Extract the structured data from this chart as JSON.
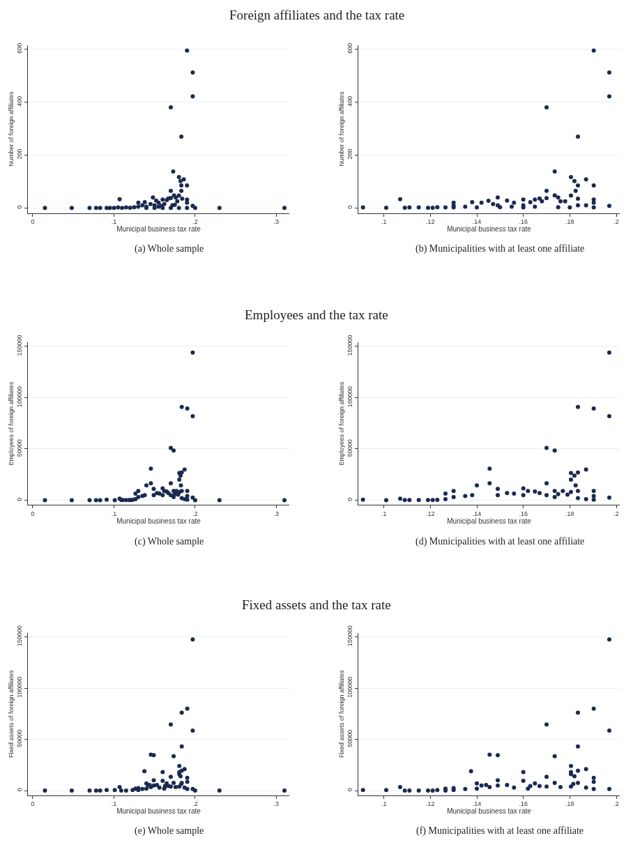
{
  "chart_data": [
    {
      "type": "scatter",
      "title": "Foreign affiliates and the tax rate",
      "xlabel": "Municipal business tax rate",
      "ylabel": "Number of foreign affiliates",
      "annotations": [
        "(a) Whole sample"
      ],
      "color": "#1a2a50",
      "marker": "circle",
      "grid": "y",
      "xlim": [
        -0.006,
        0.316
      ],
      "ylim": [
        -19,
        616
      ],
      "xticks": [
        0,
        {
          "value": 0.1,
          "label": ".1"
        },
        {
          "value": 0.2,
          "label": ".2"
        },
        {
          "value": 0.3,
          "label": ".3"
        }
      ],
      "yticks": [
        0,
        200,
        400,
        600
      ],
      "x": [
        0.015,
        0.048,
        0.07,
        0.078,
        0.083,
        0.091,
        0.095,
        0.1,
        0.105,
        0.107,
        0.11,
        0.115,
        0.12,
        0.125,
        0.13,
        0.13,
        0.135,
        0.138,
        0.14,
        0.14,
        0.145,
        0.148,
        0.15,
        0.15,
        0.152,
        0.155,
        0.155,
        0.158,
        0.16,
        0.16,
        0.162,
        0.165,
        0.167,
        0.17,
        0.17,
        0.17,
        0.17,
        0.172,
        0.173,
        0.174,
        0.175,
        0.176,
        0.178,
        0.18,
        0.18,
        0.18,
        0.182,
        0.183,
        0.183,
        0.183,
        0.184,
        0.186,
        0.19,
        0.19,
        0.19,
        0.19,
        0.19,
        0.197,
        0.197,
        0.197,
        0.2,
        0.23,
        0.31
      ],
      "values": [
        0,
        0,
        0,
        0,
        0,
        0,
        0,
        0,
        2,
        33,
        0,
        2,
        1,
        3,
        20,
        5,
        10,
        22,
        5,
        0,
        15,
        40,
        10,
        0,
        28,
        20,
        5,
        8,
        32,
        0,
        15,
        30,
        36,
        65,
        38,
        380,
        0,
        10,
        138,
        48,
        12,
        40,
        25,
        117,
        47,
        0,
        102,
        85,
        65,
        270,
        35,
        108,
        85,
        595,
        32,
        20,
        0,
        512,
        422,
        8,
        0,
        0,
        0
      ]
    },
    {
      "type": "scatter",
      "xlabel": "Municipal business tax rate",
      "ylabel": "Number of foreign affiliates",
      "annotations": [
        "(b) Municipalities with at least one affiliate"
      ],
      "color": "#1a2a50",
      "marker": "circle",
      "grid": "y",
      "xlim": [
        0.089,
        0.2015
      ],
      "ylim": [
        -19,
        616
      ],
      "xticks": [
        {
          "value": 0.1,
          "label": ".1"
        },
        {
          "value": 0.12,
          "label": ".12"
        },
        {
          "value": 0.14,
          "label": ".14"
        },
        {
          "value": 0.16,
          "label": ".16"
        },
        {
          "value": 0.18,
          "label": ".18"
        },
        {
          "value": 0.2,
          "label": ".2"
        }
      ],
      "yticks": [
        0,
        200,
        400,
        600
      ],
      "x": [
        0.091,
        0.101,
        0.107,
        0.109,
        0.111,
        0.115,
        0.119,
        0.121,
        0.123,
        0.1265,
        0.13,
        0.13,
        0.13,
        0.135,
        0.138,
        0.14,
        0.142,
        0.145,
        0.147,
        0.149,
        0.149,
        0.15,
        0.153,
        0.155,
        0.156,
        0.16,
        0.16,
        0.16,
        0.163,
        0.165,
        0.165,
        0.167,
        0.168,
        0.17,
        0.17,
        0.17,
        0.1735,
        0.1735,
        0.175,
        0.175,
        0.176,
        0.178,
        0.18,
        0.1805,
        0.1805,
        0.182,
        0.1825,
        0.1835,
        0.1835,
        0.1835,
        0.1835,
        0.187,
        0.187,
        0.1903,
        0.1903,
        0.1903,
        0.1903,
        0.1903,
        0.197,
        0.197,
        0.197
      ],
      "values": [
        2,
        1,
        33,
        1,
        2,
        2,
        1,
        1,
        3,
        2,
        20,
        8,
        2,
        5,
        22,
        2,
        20,
        27,
        15,
        40,
        10,
        3,
        28,
        5,
        20,
        32,
        10,
        2,
        22,
        32,
        5,
        36,
        25,
        65,
        37,
        380,
        138,
        48,
        40,
        3,
        25,
        25,
        2,
        117,
        47,
        102,
        65,
        85,
        270,
        35,
        10,
        108,
        10,
        85,
        595,
        32,
        20,
        2,
        512,
        422,
        8
      ]
    },
    {
      "type": "scatter",
      "title": "Employees and the tax rate",
      "xlabel": "Municipal business tax rate",
      "ylabel": "Employees of foreign affiliates",
      "annotations": [
        "(c) Whole sample"
      ],
      "color": "#1a2a50",
      "marker": "circle",
      "grid": "y",
      "xlim": [
        -0.006,
        0.316
      ],
      "ylim": [
        -4500,
        154000
      ],
      "xticks": [
        0,
        {
          "value": 0.1,
          "label": ".1"
        },
        {
          "value": 0.2,
          "label": ".2"
        },
        {
          "value": 0.3,
          "label": ".3"
        }
      ],
      "yticks": [
        0,
        50000,
        100000,
        150000
      ],
      "x": [
        0.015,
        0.048,
        0.07,
        0.078,
        0.083,
        0.091,
        0.101,
        0.107,
        0.109,
        0.111,
        0.115,
        0.119,
        0.121,
        0.123,
        0.1265,
        0.1265,
        0.13,
        0.13,
        0.135,
        0.138,
        0.14,
        0.1455,
        0.1455,
        0.149,
        0.149,
        0.153,
        0.156,
        0.16,
        0.16,
        0.162,
        0.165,
        0.167,
        0.17,
        0.17,
        0.17,
        0.1735,
        0.1735,
        0.1735,
        0.175,
        0.177,
        0.179,
        0.1805,
        0.1805,
        0.1805,
        0.182,
        0.1825,
        0.1835,
        0.1835,
        0.1835,
        0.1835,
        0.187,
        0.187,
        0.1903,
        0.1903,
        0.1903,
        0.1903,
        0.197,
        0.197,
        0.197,
        0.2,
        0.23,
        0.31
      ],
      "values": [
        0,
        0,
        0,
        0,
        0,
        500,
        0,
        1500,
        200,
        200,
        100,
        200,
        200,
        300,
        6500,
        1000,
        9000,
        3000,
        4000,
        5000,
        14500,
        30800,
        16500,
        11000,
        5000,
        7000,
        6500,
        11500,
        5000,
        9000,
        8500,
        7000,
        51000,
        16500,
        5000,
        48500,
        9000,
        3000,
        6000,
        9000,
        5500,
        26500,
        20000,
        8000,
        24000,
        14500,
        91000,
        27000,
        9000,
        2000,
        30000,
        1000,
        89500,
        9000,
        4000,
        500,
        144000,
        82000,
        2500,
        0,
        0,
        0
      ]
    },
    {
      "type": "scatter",
      "xlabel": "Municipal business tax rate",
      "ylabel": "Employees of foreign affiliates",
      "annotations": [
        "(d) Municipalities with at least one affiliate"
      ],
      "color": "#1a2a50",
      "marker": "circle",
      "grid": "y",
      "xlim": [
        0.089,
        0.2015
      ],
      "ylim": [
        -4500,
        154000
      ],
      "xticks": [
        {
          "value": 0.1,
          "label": ".1"
        },
        {
          "value": 0.12,
          "label": ".12"
        },
        {
          "value": 0.14,
          "label": ".14"
        },
        {
          "value": 0.16,
          "label": ".16"
        },
        {
          "value": 0.18,
          "label": ".18"
        },
        {
          "value": 0.2,
          "label": ".2"
        }
      ],
      "yticks": [
        0,
        50000,
        100000,
        150000
      ],
      "x": [
        0.091,
        0.101,
        0.107,
        0.109,
        0.111,
        0.115,
        0.119,
        0.121,
        0.123,
        0.1265,
        0.1265,
        0.13,
        0.13,
        0.135,
        0.138,
        0.14,
        0.1455,
        0.1455,
        0.149,
        0.149,
        0.153,
        0.156,
        0.16,
        0.16,
        0.162,
        0.165,
        0.167,
        0.17,
        0.17,
        0.17,
        0.1735,
        0.1735,
        0.1735,
        0.175,
        0.177,
        0.179,
        0.1805,
        0.1805,
        0.1805,
        0.182,
        0.1825,
        0.1835,
        0.1835,
        0.1835,
        0.1835,
        0.187,
        0.187,
        0.1903,
        0.1903,
        0.1903,
        0.1903,
        0.197,
        0.197,
        0.197
      ],
      "values": [
        500,
        0,
        1500,
        200,
        200,
        100,
        200,
        200,
        300,
        6500,
        1000,
        9000,
        3000,
        4000,
        5000,
        14500,
        30800,
        16500,
        11000,
        5000,
        7000,
        6500,
        11500,
        5000,
        9000,
        8500,
        7000,
        51000,
        16500,
        5000,
        48500,
        9000,
        3000,
        6000,
        9000,
        5500,
        26500,
        20000,
        8000,
        24000,
        14500,
        91000,
        27000,
        9000,
        2000,
        30000,
        1000,
        89500,
        9000,
        4000,
        500,
        144000,
        82000,
        2500
      ]
    },
    {
      "type": "scatter",
      "title": "Fixed assets and the tax rate",
      "xlabel": "Municipal business tax rate",
      "ylabel": "Fixed assets of foreign affiliates",
      "annotations": [
        "(e) Whole sample"
      ],
      "color": "#1a2a50",
      "marker": "circle",
      "grid": "y",
      "xlim": [
        -0.006,
        0.316
      ],
      "ylim": [
        -4500,
        154000
      ],
      "xticks": [
        0,
        {
          "value": 0.1,
          "label": ".1"
        },
        {
          "value": 0.2,
          "label": ".2"
        },
        {
          "value": 0.3,
          "label": ".3"
        }
      ],
      "yticks": [
        0,
        50000,
        100000,
        150000
      ],
      "x": [
        0.015,
        0.048,
        0.07,
        0.078,
        0.083,
        0.091,
        0.101,
        0.107,
        0.109,
        0.115,
        0.123,
        0.1265,
        0.13,
        0.13,
        0.135,
        0.1375,
        0.14,
        0.14,
        0.142,
        0.144,
        0.1455,
        0.1455,
        0.149,
        0.149,
        0.149,
        0.153,
        0.156,
        0.16,
        0.16,
        0.162,
        0.163,
        0.165,
        0.167,
        0.17,
        0.17,
        0.17,
        0.1735,
        0.1735,
        0.176,
        0.1805,
        0.1805,
        0.1805,
        0.1805,
        0.182,
        0.183,
        0.1835,
        0.1835,
        0.1835,
        0.1835,
        0.187,
        0.187,
        0.1903,
        0.1903,
        0.1903,
        0.1903,
        0.197,
        0.197,
        0.197,
        0.2,
        0.23,
        0.31
      ],
      "values": [
        0,
        0,
        0,
        0,
        0,
        500,
        500,
        3500,
        0,
        0,
        500,
        2000,
        2500,
        500,
        1500,
        19000,
        7000,
        2000,
        5000,
        5500,
        35000,
        3500,
        34500,
        10000,
        5000,
        5500,
        3000,
        18000,
        9500,
        2000,
        4500,
        7000,
        4500,
        64500,
        13500,
        4000,
        33500,
        7500,
        3500,
        24000,
        18000,
        16000,
        4000,
        14000,
        6500,
        76000,
        43000,
        19500,
        7500,
        21000,
        3000,
        80000,
        12500,
        8500,
        1500,
        147500,
        58500,
        1500,
        0,
        0,
        0
      ]
    },
    {
      "type": "scatter",
      "xlabel": "Municipal business tax rate",
      "ylabel": "Fixed assets of foreign affiliates",
      "annotations": [
        "(f) Municipalities with at least one affiliate"
      ],
      "color": "#1a2a50",
      "marker": "circle",
      "grid": "y",
      "xlim": [
        0.089,
        0.2015
      ],
      "ylim": [
        -4500,
        154000
      ],
      "xticks": [
        {
          "value": 0.1,
          "label": ".1"
        },
        {
          "value": 0.12,
          "label": ".12"
        },
        {
          "value": 0.14,
          "label": ".14"
        },
        {
          "value": 0.16,
          "label": ".16"
        },
        {
          "value": 0.18,
          "label": ".18"
        },
        {
          "value": 0.2,
          "label": ".2"
        }
      ],
      "yticks": [
        0,
        50000,
        100000,
        150000
      ],
      "x": [
        0.091,
        0.101,
        0.107,
        0.109,
        0.111,
        0.115,
        0.119,
        0.121,
        0.123,
        0.1265,
        0.1265,
        0.13,
        0.13,
        0.135,
        0.1375,
        0.14,
        0.14,
        0.142,
        0.144,
        0.1455,
        0.1455,
        0.149,
        0.149,
        0.149,
        0.153,
        0.156,
        0.16,
        0.16,
        0.162,
        0.163,
        0.165,
        0.167,
        0.17,
        0.17,
        0.17,
        0.1735,
        0.1735,
        0.176,
        0.1805,
        0.1805,
        0.1805,
        0.1805,
        0.182,
        0.1815,
        0.1835,
        0.1835,
        0.1835,
        0.1835,
        0.187,
        0.187,
        0.1903,
        0.1903,
        0.1903,
        0.1903,
        0.197,
        0.197,
        0.197
      ],
      "values": [
        500,
        500,
        3500,
        0,
        0,
        0,
        0,
        0,
        500,
        2000,
        0,
        2500,
        500,
        1500,
        19000,
        7000,
        2000,
        5000,
        5500,
        35000,
        3500,
        34500,
        10000,
        5000,
        5500,
        3000,
        18000,
        9500,
        2000,
        4500,
        7000,
        4500,
        64500,
        13500,
        4000,
        33500,
        7500,
        3500,
        24000,
        18000,
        16000,
        4000,
        14000,
        6500,
        76000,
        43000,
        19500,
        7500,
        21000,
        3000,
        80000,
        12500,
        8500,
        1500,
        147500,
        58500,
        1500
      ]
    }
  ]
}
